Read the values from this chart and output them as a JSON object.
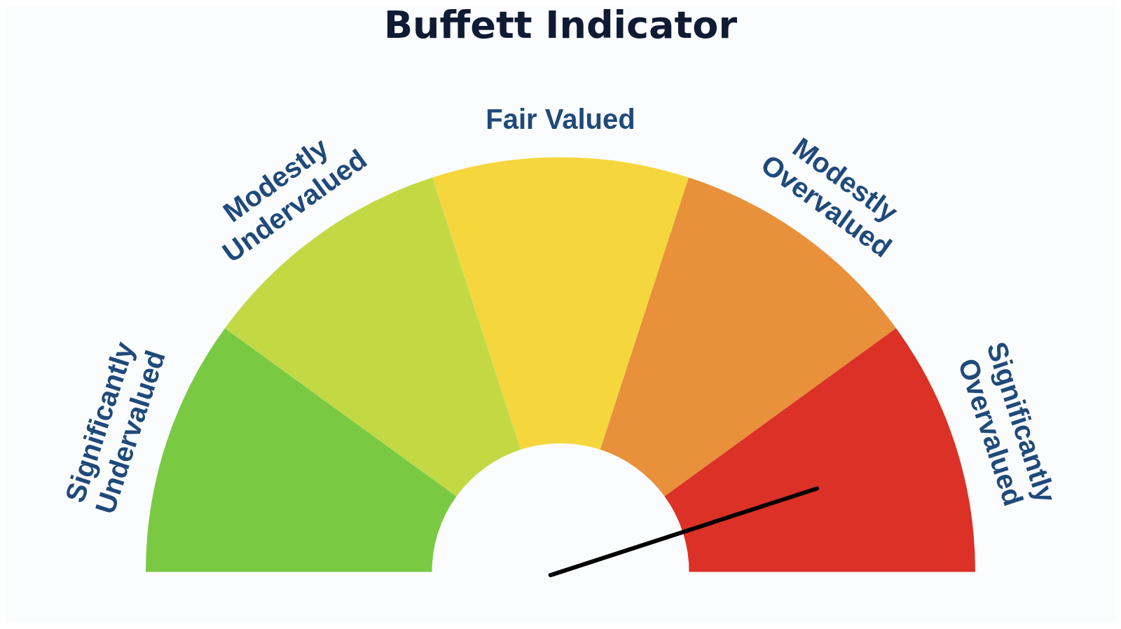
{
  "chart_data": {
    "type": "donut",
    "title": "Buffett Indicator",
    "categories": [
      "Significantly Undervalued",
      "Modestly Undervalued",
      "Fair Valued",
      "Modestly Overvalued",
      "Significantly Overvalued"
    ],
    "values": [
      20,
      20,
      20,
      20,
      20
    ],
    "colors": [
      "#7ac943",
      "#c2d944",
      "#f5d63d",
      "#e8903a",
      "#dc3126"
    ],
    "needle": "Significantly Overvalued",
    "legend": false
  }
}
